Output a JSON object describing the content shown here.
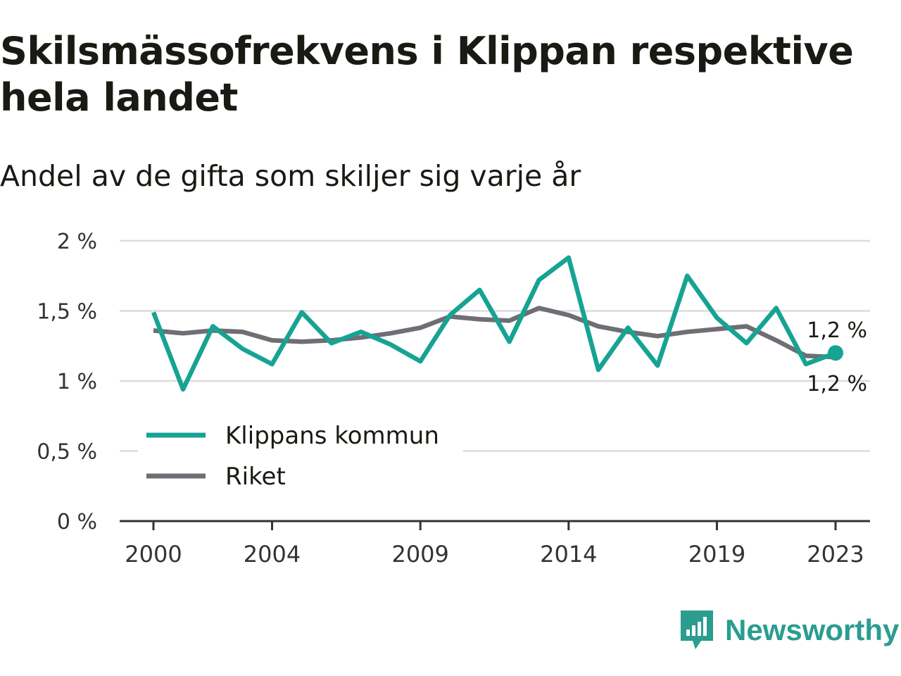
{
  "header": {
    "title": "Skilsmässofrekvens i Klippan respektive hela landet",
    "subtitle": "Andel av de gifta som skiljer sig varje år"
  },
  "brand": {
    "name": "Newsworthy",
    "icon": "bar-chart-speech-bubble-icon",
    "color": "#2a9d8f"
  },
  "chart_data": {
    "type": "line",
    "title": "Skilsmässofrekvens i Klippan respektive hela landet",
    "subtitle": "Andel av de gifta som skiljer sig varje år",
    "x": [
      2000,
      2001,
      2002,
      2003,
      2004,
      2005,
      2006,
      2007,
      2008,
      2009,
      2010,
      2011,
      2012,
      2013,
      2014,
      2015,
      2016,
      2017,
      2018,
      2019,
      2020,
      2021,
      2022,
      2023
    ],
    "x_tick_values": [
      2000,
      2004,
      2009,
      2014,
      2019,
      2023
    ],
    "x_tick_labels": [
      "2000",
      "2004",
      "2009",
      "2014",
      "2019",
      "2023"
    ],
    "y_tick_values": [
      0,
      0.5,
      1,
      1.5,
      2
    ],
    "y_tick_labels": [
      "0 %",
      "0,5 %",
      "1 %",
      "1,5 %",
      "2 %"
    ],
    "ylim": [
      0,
      2
    ],
    "y_unit": "%",
    "grid": true,
    "legend_position": "bottom-left",
    "series": [
      {
        "name": "Klippans kommun",
        "color": "#16a394",
        "values": [
          1.49,
          0.94,
          1.39,
          1.23,
          1.12,
          1.49,
          1.27,
          1.35,
          1.26,
          1.14,
          1.47,
          1.65,
          1.28,
          1.72,
          1.88,
          1.08,
          1.38,
          1.11,
          1.75,
          1.45,
          1.27,
          1.52,
          1.12,
          1.2
        ],
        "end_label": "1,2 %",
        "end_marker": true
      },
      {
        "name": "Riket",
        "color": "#6e6e74",
        "values": [
          1.36,
          1.34,
          1.36,
          1.35,
          1.29,
          1.28,
          1.29,
          1.31,
          1.34,
          1.38,
          1.46,
          1.44,
          1.43,
          1.52,
          1.47,
          1.39,
          1.35,
          1.32,
          1.35,
          1.37,
          1.39,
          1.29,
          1.18,
          1.17
        ],
        "end_label": "1,2 %",
        "end_marker": false
      }
    ]
  }
}
